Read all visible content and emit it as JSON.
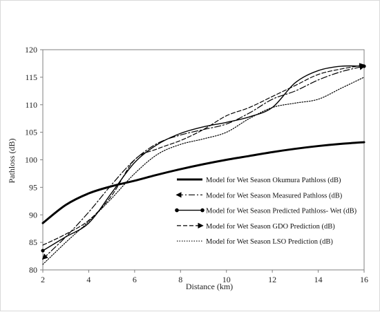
{
  "chart_data": {
    "type": "line",
    "xlabel": "Distance (km)",
    "ylabel": "Pathloss (dB)",
    "xlim": [
      2,
      16
    ],
    "ylim": [
      80,
      120
    ],
    "xticks": [
      2,
      4,
      6,
      8,
      10,
      12,
      14,
      16
    ],
    "yticks": [
      80,
      85,
      90,
      95,
      100,
      105,
      110,
      115,
      120
    ],
    "grid": false,
    "legend_placement": "bottom-right",
    "x": [
      2,
      3,
      4,
      5,
      6,
      7,
      8,
      9,
      10,
      11,
      12,
      13,
      14,
      15,
      16
    ],
    "series": [
      {
        "name": "Model for Wet Season Okumura Pathloss (dB)",
        "style": "thick-solid",
        "color": "#000000",
        "values": [
          88.5,
          91.8,
          93.9,
          95.2,
          96.2,
          97.3,
          98.3,
          99.2,
          100.0,
          100.7,
          101.4,
          102.0,
          102.5,
          102.9,
          103.2
        ]
      },
      {
        "name": "Model for Wet Season Measured Pathloss (dB)",
        "style": "dash-dot-arrow",
        "color": "#000000",
        "values": [
          82.0,
          86.0,
          90.5,
          95.5,
          100.0,
          103.0,
          104.5,
          105.5,
          106.5,
          108.5,
          111.0,
          112.5,
          114.5,
          116.0,
          117.0
        ]
      },
      {
        "name": "Model for Wet Season Predicted Pathloss- Wet (dB)",
        "style": "solid-dot",
        "color": "#000000",
        "values": [
          83.5,
          86.0,
          88.5,
          94.0,
          99.5,
          102.8,
          104.8,
          106.0,
          106.8,
          107.8,
          109.5,
          114.0,
          116.2,
          117.0,
          117.0
        ]
      },
      {
        "name": "Model for Wet Season GDO Prediction (dB)",
        "style": "dashed-arrow",
        "color": "#000000",
        "values": [
          84.5,
          86.5,
          89.0,
          93.5,
          100.0,
          102.0,
          103.5,
          105.5,
          108.0,
          109.5,
          111.5,
          113.5,
          115.5,
          116.5,
          117.2
        ]
      },
      {
        "name": "Model for Wet Season LSO Prediction (dB)",
        "style": "dotted",
        "color": "#000000",
        "values": [
          81.0,
          85.0,
          88.8,
          93.0,
          97.5,
          101.0,
          102.8,
          103.8,
          105.0,
          107.5,
          109.5,
          110.3,
          111.0,
          113.0,
          115.0
        ]
      }
    ]
  }
}
